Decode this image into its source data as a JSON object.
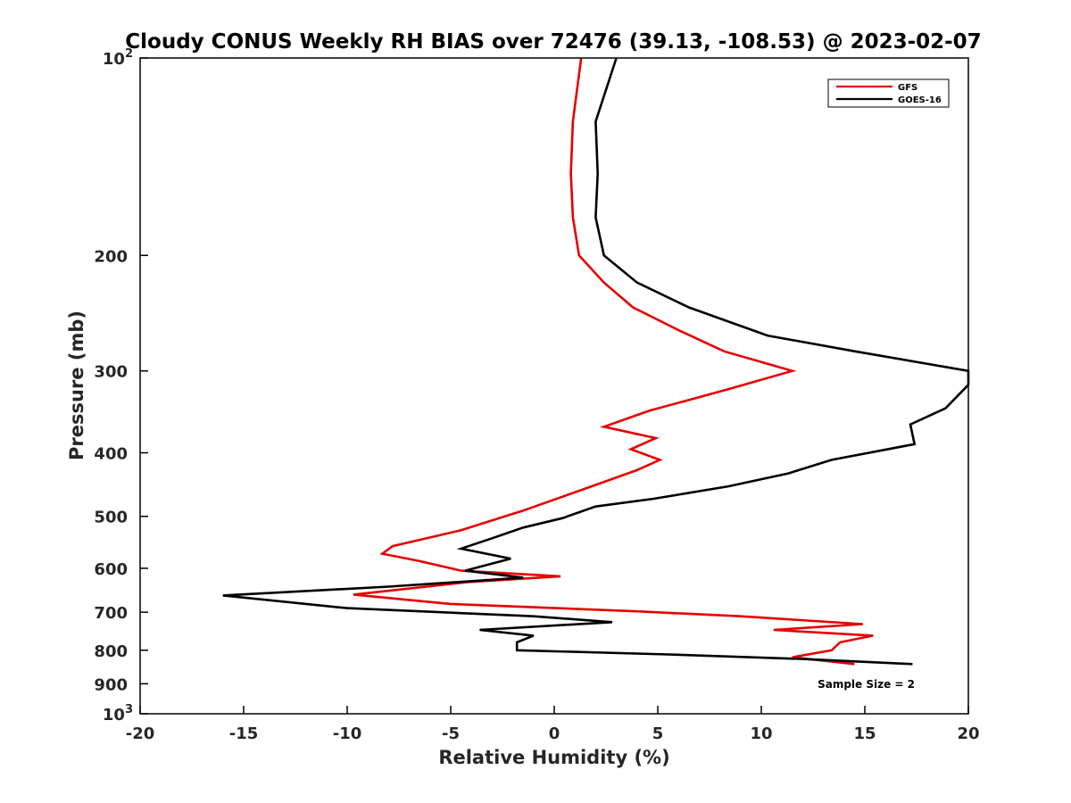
{
  "chart_data": {
    "type": "line",
    "title": "Cloudy CONUS Weekly RH BIAS over 72476 (39.13, -108.53) @ 2023-02-07",
    "xlabel": "Relative Humidity (%)",
    "ylabel": "Pressure (mb)",
    "xlim": [
      -20,
      20
    ],
    "ylim": [
      100,
      1000
    ],
    "yscale": "log",
    "y_reversed": true,
    "x_ticks": [
      -20,
      -15,
      -10,
      -5,
      0,
      5,
      10,
      15,
      20
    ],
    "y_ticks": [
      {
        "value": 100,
        "label": "10",
        "sup": "2"
      },
      {
        "value": 200,
        "label": "200"
      },
      {
        "value": 300,
        "label": "300"
      },
      {
        "value": 400,
        "label": "400"
      },
      {
        "value": 500,
        "label": "500"
      },
      {
        "value": 600,
        "label": "600"
      },
      {
        "value": 700,
        "label": "700"
      },
      {
        "value": 800,
        "label": "800"
      },
      {
        "value": 900,
        "label": "900"
      },
      {
        "value": 1000,
        "label": "10",
        "sup": "3"
      }
    ],
    "grid": false,
    "legend_position": "top-right",
    "series": [
      {
        "name": "GFS",
        "color": "#e60000",
        "points": [
          [
            1.3,
            100
          ],
          [
            0.9,
            125
          ],
          [
            0.8,
            150
          ],
          [
            0.9,
            175
          ],
          [
            1.2,
            200
          ],
          [
            2.4,
            220
          ],
          [
            3.8,
            240
          ],
          [
            6.0,
            260
          ],
          [
            8.2,
            280
          ],
          [
            11.5,
            300
          ],
          [
            8.4,
            320
          ],
          [
            4.6,
            345
          ],
          [
            2.4,
            365
          ],
          [
            4.9,
            380
          ],
          [
            3.7,
            395
          ],
          [
            5.1,
            410
          ],
          [
            4.0,
            425
          ],
          [
            1.8,
            450
          ],
          [
            -1.5,
            490
          ],
          [
            -4.5,
            525
          ],
          [
            -7.8,
            555
          ],
          [
            -8.3,
            570
          ],
          [
            -6.5,
            585
          ],
          [
            -4.5,
            605
          ],
          [
            0.3,
            617
          ],
          [
            -4.2,
            630
          ],
          [
            -9.7,
            658
          ],
          [
            -5.0,
            680
          ],
          [
            4.0,
            698
          ],
          [
            9.0,
            710
          ],
          [
            14.9,
            730
          ],
          [
            10.6,
            745
          ],
          [
            15.4,
            760
          ],
          [
            13.8,
            778
          ],
          [
            13.4,
            800
          ],
          [
            11.5,
            820
          ],
          [
            14.5,
            840
          ]
        ]
      },
      {
        "name": "GOES-16",
        "color": "#000000",
        "points": [
          [
            3.0,
            100
          ],
          [
            2.0,
            125
          ],
          [
            2.1,
            150
          ],
          [
            2.0,
            175
          ],
          [
            2.4,
            200
          ],
          [
            4.0,
            220
          ],
          [
            6.5,
            240
          ],
          [
            10.3,
            265
          ],
          [
            14.5,
            280
          ],
          [
            20.0,
            300
          ],
          [
            20.0,
            315
          ],
          [
            18.9,
            342
          ],
          [
            17.2,
            362
          ],
          [
            17.4,
            388
          ],
          [
            13.4,
            410
          ],
          [
            11.3,
            430
          ],
          [
            8.4,
            450
          ],
          [
            4.8,
            470
          ],
          [
            2.0,
            483
          ],
          [
            0.4,
            503
          ],
          [
            -1.5,
            520
          ],
          [
            -3.0,
            540
          ],
          [
            -4.5,
            560
          ],
          [
            -2.1,
            580
          ],
          [
            -4.3,
            605
          ],
          [
            -1.5,
            620
          ],
          [
            -8.0,
            640
          ],
          [
            -16.0,
            660
          ],
          [
            -10.0,
            690
          ],
          [
            -1.0,
            710
          ],
          [
            2.8,
            725
          ],
          [
            -3.6,
            745
          ],
          [
            -1.0,
            760
          ],
          [
            -1.8,
            778
          ],
          [
            -1.8,
            800
          ],
          [
            5.5,
            812
          ],
          [
            12.0,
            825
          ],
          [
            17.3,
            840
          ]
        ]
      }
    ],
    "annotation": "Sample Size = 2"
  }
}
